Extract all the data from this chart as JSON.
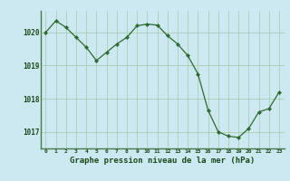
{
  "hours": [
    0,
    1,
    2,
    3,
    4,
    5,
    6,
    7,
    8,
    9,
    10,
    11,
    12,
    13,
    14,
    15,
    16,
    17,
    18,
    19,
    20,
    21,
    22,
    23
  ],
  "pressure": [
    1020.0,
    1020.35,
    1020.15,
    1019.85,
    1019.55,
    1019.15,
    1019.4,
    1019.65,
    1019.85,
    1020.2,
    1020.25,
    1020.22,
    1019.9,
    1019.65,
    1019.3,
    1018.75,
    1017.65,
    1017.0,
    1016.87,
    1016.83,
    1017.1,
    1017.6,
    1017.7,
    1018.2
  ],
  "line_color": "#2d6a2d",
  "marker_color": "#2d6a2d",
  "bg_color": "#cce8f0",
  "grid_color": "#a8c8a8",
  "xlabel": "Graphe pression niveau de la mer (hPa)",
  "xlabel_color": "#1a4a1a",
  "tick_color": "#1a4a1a",
  "axis_color": "#4a7a4a",
  "ylim": [
    1016.5,
    1020.65
  ],
  "yticks": [
    1017,
    1018,
    1019,
    1020
  ],
  "xticks": [
    0,
    1,
    2,
    3,
    4,
    5,
    6,
    7,
    8,
    9,
    10,
    11,
    12,
    13,
    14,
    15,
    16,
    17,
    18,
    19,
    20,
    21,
    22,
    23
  ],
  "figsize": [
    3.2,
    2.0
  ],
  "dpi": 100
}
